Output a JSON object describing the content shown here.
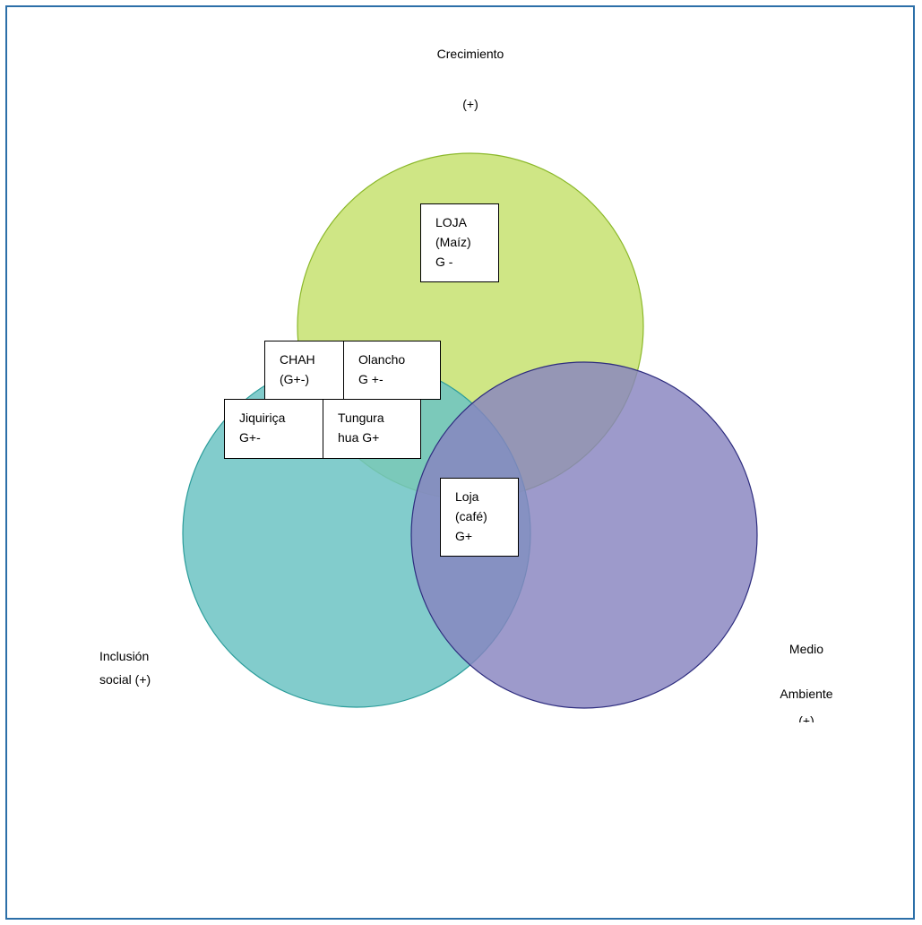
{
  "sets": {
    "growth": {
      "line1": "Crecimiento",
      "line2": "(+)",
      "fill": "#c5e06a",
      "stroke": "#8bb82a"
    },
    "inclusion": {
      "line1": "Inclusión",
      "line2": "social (+)",
      "fill": "#6cc3c3",
      "stroke": "#2a9c9a"
    },
    "environment": {
      "line1": "Medio",
      "line2": "Ambiente",
      "line3": "(+)",
      "fill": "#8784c0",
      "stroke": "#2d2c7e"
    }
  },
  "cases": {
    "loja_maiz": {
      "line1": "LOJA",
      "line2": "(Maíz)",
      "line3": "G -"
    },
    "chah": {
      "line1": "CHAH",
      "line2": "(G+-)"
    },
    "olancho": {
      "line1": "Olancho",
      "line2": "G +-"
    },
    "jiquirica": {
      "line1": "Jiquiriça",
      "line2": "G+-"
    },
    "tungurahua": {
      "line1": "Tungura",
      "line2": "hua G+"
    },
    "loja_cafe": {
      "line1": "Loja",
      "line2": "(café)",
      "line3": "G+"
    }
  }
}
